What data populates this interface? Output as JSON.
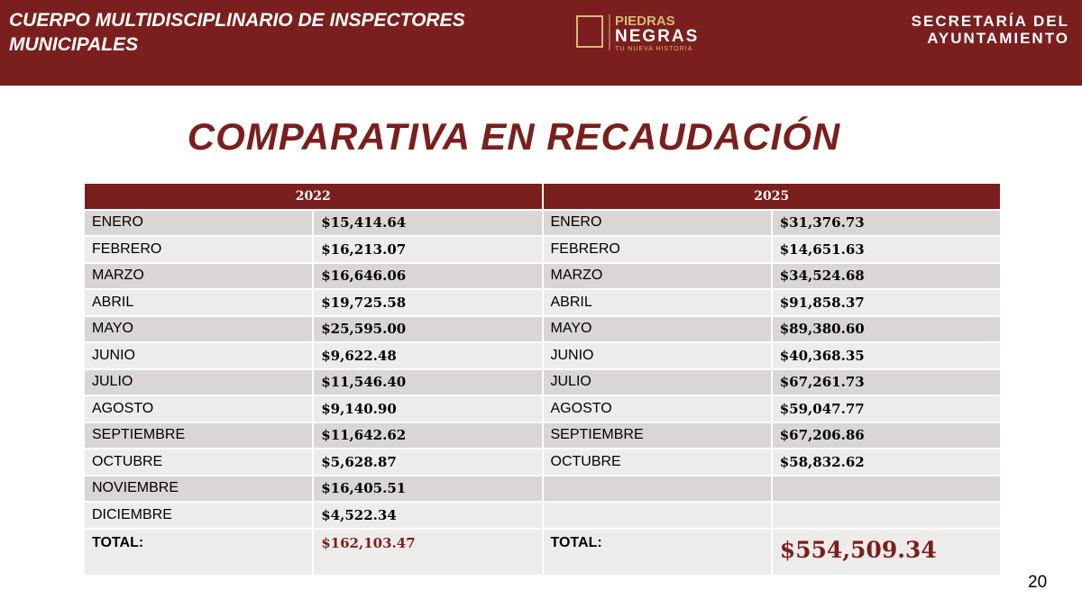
{
  "header": {
    "title": "CUERPO MULTIDISCIPLINARIO DE INSPECTORES MUNICIPALES",
    "logo": {
      "line1": "PIEDRAS",
      "line2": "NEGRAS",
      "tagline": "TU NUEVA HISTORIA"
    },
    "department": [
      "SECRETARÍA DEL",
      "AYUNTAMIENTO"
    ]
  },
  "title": "COMPARATIVA EN RECAUDACIÓN",
  "table": {
    "columns": [
      {
        "year": "2022",
        "rows": [
          [
            "ENERO",
            "$15,414.64"
          ],
          [
            "FEBRERO",
            "$16,213.07"
          ],
          [
            "MARZO",
            "$16,646.06"
          ],
          [
            "ABRIL",
            "$19,725.58"
          ],
          [
            "MAYO",
            "$25,595.00"
          ],
          [
            "JUNIO",
            "$9,622.48"
          ],
          [
            "JULIO",
            "$11,546.40"
          ],
          [
            "AGOSTO",
            "$9,140.90"
          ],
          [
            "SEPTIEMBRE",
            "$11,642.62"
          ],
          [
            "OCTUBRE",
            "$5,628.87"
          ],
          [
            "NOVIEMBRE",
            "$16,405.51"
          ],
          [
            "DICIEMBRE",
            "$4,522.34"
          ]
        ],
        "total_label": "TOTAL:",
        "total": "$162,103.47"
      },
      {
        "year": "2025",
        "rows": [
          [
            "ENERO",
            "$31,376.73"
          ],
          [
            "FEBRERO",
            "$14,651.63"
          ],
          [
            "MARZO",
            "$34,524.68"
          ],
          [
            "ABRIL",
            "$91,858.37"
          ],
          [
            "MAYO",
            "$89,380.60"
          ],
          [
            "JUNIO",
            "$40,368.35"
          ],
          [
            "JULIO",
            "$67,261.73"
          ],
          [
            "AGOSTO",
            "$59,047.77"
          ],
          [
            "SEPTIEMBRE",
            "$67,206.86"
          ],
          [
            "OCTUBRE",
            "$58,832.62"
          ]
        ],
        "total_label": "TOTAL:",
        "total": "$554,509.34"
      }
    ]
  },
  "page_number": "20"
}
